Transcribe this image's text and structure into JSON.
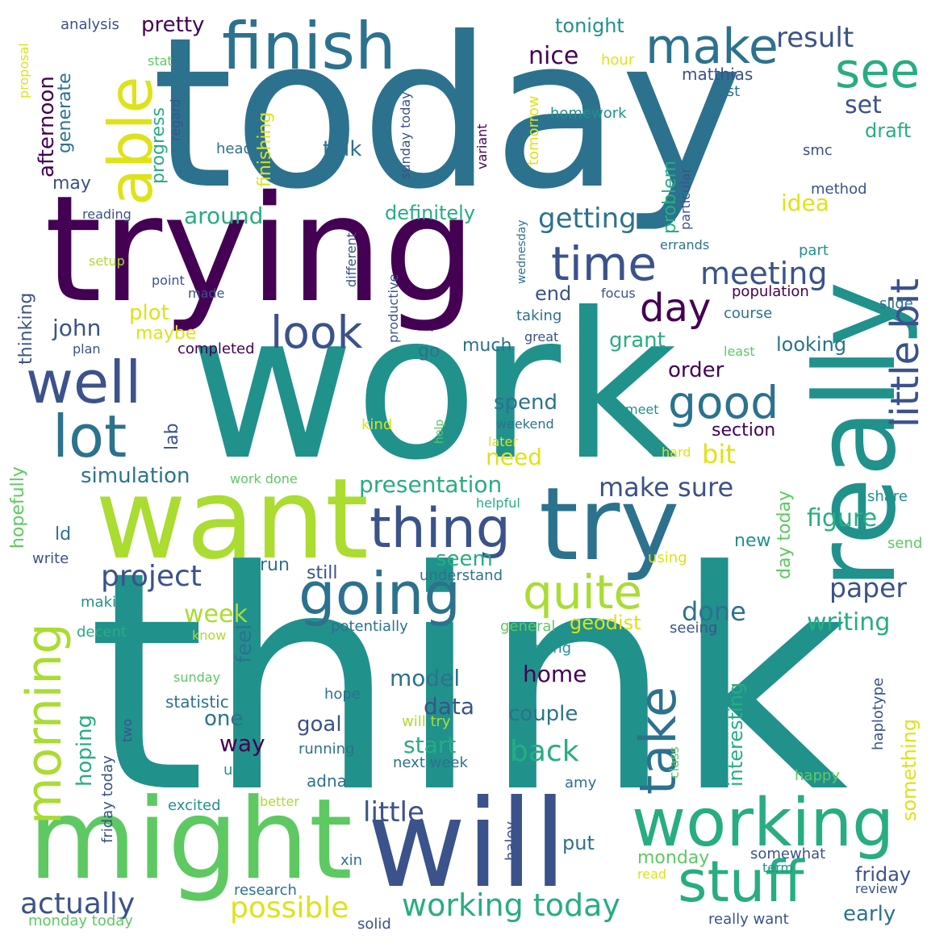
{
  "palette": {
    "dark_purple": "#440154",
    "indigo": "#3b528b",
    "blue": "#2c728e",
    "teal": "#21918c",
    "green": "#27ad81",
    "lime": "#5ec962",
    "yellow_green": "#aadc32",
    "yellow": "#dde318"
  },
  "words": [
    {
      "text": "today",
      "color": "#2c728e"
    },
    {
      "text": "work",
      "color": "#21918c"
    },
    {
      "text": "think",
      "color": "#21918c"
    },
    {
      "text": "trying",
      "color": "#440154"
    },
    {
      "text": "want",
      "color": "#aadc32"
    },
    {
      "text": "might",
      "color": "#5ec962"
    },
    {
      "text": "will",
      "color": "#3b528b"
    },
    {
      "text": "really",
      "color": "#21918c"
    },
    {
      "text": "try",
      "color": "#2c728e"
    },
    {
      "text": "finish",
      "color": "#2c728e"
    },
    {
      "text": "able",
      "color": "#dde318"
    },
    {
      "text": "working",
      "color": "#27ad81"
    },
    {
      "text": "going",
      "color": "#2c728e"
    },
    {
      "text": "thing",
      "color": "#3b528b"
    },
    {
      "text": "well",
      "color": "#3b528b"
    },
    {
      "text": "lot",
      "color": "#2c728e"
    },
    {
      "text": "stuff",
      "color": "#27ad81"
    },
    {
      "text": "take",
      "color": "#2c728e"
    },
    {
      "text": "quite",
      "color": "#aadc32"
    },
    {
      "text": "morning",
      "color": "#aadc32"
    },
    {
      "text": "make",
      "color": "#2c728e"
    },
    {
      "text": "see",
      "color": "#27ad81"
    },
    {
      "text": "time",
      "color": "#3b528b"
    },
    {
      "text": "look",
      "color": "#3b528b"
    },
    {
      "text": "good",
      "color": "#2c728e"
    },
    {
      "text": "day",
      "color": "#440154"
    },
    {
      "text": "little bit",
      "color": "#3b528b"
    },
    {
      "text": "working today",
      "color": "#27ad81"
    },
    {
      "text": "possible",
      "color": "#dde318"
    },
    {
      "text": "actually",
      "color": "#3b528b"
    },
    {
      "text": "project",
      "color": "#3b528b"
    },
    {
      "text": "meeting",
      "color": "#3b528b"
    },
    {
      "text": "getting",
      "color": "#2c728e"
    },
    {
      "text": "result",
      "color": "#3b528b"
    },
    {
      "text": "nice",
      "color": "#440154"
    },
    {
      "text": "set",
      "color": "#3b528b"
    },
    {
      "text": "draft",
      "color": "#27ad81"
    },
    {
      "text": "paper",
      "color": "#3b528b"
    },
    {
      "text": "writing",
      "color": "#27ad81"
    },
    {
      "text": "figure",
      "color": "#27ad81"
    },
    {
      "text": "make sure",
      "color": "#3b528b"
    },
    {
      "text": "presentation",
      "color": "#27ad81"
    },
    {
      "text": "little",
      "color": "#3b528b"
    },
    {
      "text": "back",
      "color": "#27ad81"
    },
    {
      "text": "start",
      "color": "#27ad81"
    },
    {
      "text": "data",
      "color": "#3b528b"
    },
    {
      "text": "model",
      "color": "#2c728e"
    },
    {
      "text": "home",
      "color": "#440154"
    },
    {
      "text": "couple",
      "color": "#2c728e"
    },
    {
      "text": "done",
      "color": "#2c728e"
    },
    {
      "text": "geodist",
      "color": "#dde318"
    },
    {
      "text": "week",
      "color": "#aadc32"
    },
    {
      "text": "seem",
      "color": "#27ad81"
    },
    {
      "text": "need",
      "color": "#dde318"
    },
    {
      "text": "bit",
      "color": "#dde318"
    },
    {
      "text": "spend",
      "color": "#2c728e"
    },
    {
      "text": "order",
      "color": "#440154"
    },
    {
      "text": "grant",
      "color": "#27ad81"
    },
    {
      "text": "looking",
      "color": "#2c728e"
    },
    {
      "text": "section",
      "color": "#440154"
    },
    {
      "text": "much",
      "color": "#2c728e"
    },
    {
      "text": "go",
      "color": "#2c728e"
    },
    {
      "text": "end",
      "color": "#3b528b"
    },
    {
      "text": "idea",
      "color": "#dde318"
    },
    {
      "text": "john",
      "color": "#3b528b"
    },
    {
      "text": "plot",
      "color": "#dde318"
    },
    {
      "text": "maybe",
      "color": "#dde318"
    },
    {
      "text": "around",
      "color": "#27ad81"
    },
    {
      "text": "definitely",
      "color": "#27ad81"
    },
    {
      "text": "talk",
      "color": "#2c728e"
    },
    {
      "text": "may",
      "color": "#3b528b"
    },
    {
      "text": "pretty",
      "color": "#440154"
    },
    {
      "text": "tonight",
      "color": "#21918c"
    },
    {
      "text": "matthias",
      "color": "#3b528b"
    },
    {
      "text": "first",
      "color": "#2c728e"
    },
    {
      "text": "homework",
      "color": "#21918c"
    },
    {
      "text": "hour",
      "color": "#dde318"
    },
    {
      "text": "stat",
      "color": "#5ec962"
    },
    {
      "text": "analysis",
      "color": "#3b528b"
    },
    {
      "text": "head",
      "color": "#2c728e"
    },
    {
      "text": "smc",
      "color": "#3b528b"
    },
    {
      "text": "method",
      "color": "#3b528b"
    },
    {
      "text": "reading",
      "color": "#3b528b"
    },
    {
      "text": "setup",
      "color": "#aadc32"
    },
    {
      "text": "point",
      "color": "#3b528b"
    },
    {
      "text": "made",
      "color": "#3b528b"
    },
    {
      "text": "focus",
      "color": "#3b528b"
    },
    {
      "text": "population",
      "color": "#440154"
    },
    {
      "text": "taking",
      "color": "#2c728e"
    },
    {
      "text": "course",
      "color": "#2c728e"
    },
    {
      "text": "slide",
      "color": "#2c728e"
    },
    {
      "text": "errands",
      "color": "#2c728e"
    },
    {
      "text": "part",
      "color": "#21918c"
    },
    {
      "text": "keep",
      "color": "#440154"
    },
    {
      "text": "great",
      "color": "#3b528b"
    },
    {
      "text": "plan",
      "color": "#3b528b"
    },
    {
      "text": "completed",
      "color": "#440154"
    },
    {
      "text": "least",
      "color": "#5ec962"
    },
    {
      "text": "kind",
      "color": "#dde318"
    },
    {
      "text": "weekend",
      "color": "#2c728e"
    },
    {
      "text": "meet",
      "color": "#21918c"
    },
    {
      "text": "later",
      "color": "#dde318"
    },
    {
      "text": "hard",
      "color": "#dde318"
    },
    {
      "text": "help",
      "color": "#5ec962"
    },
    {
      "text": "simulation",
      "color": "#2c728e"
    },
    {
      "text": "work done",
      "color": "#5ec962"
    },
    {
      "text": "helpful",
      "color": "#27ad81"
    },
    {
      "text": "share",
      "color": "#21918c"
    },
    {
      "text": "send",
      "color": "#5ec962"
    },
    {
      "text": "new",
      "color": "#21918c"
    },
    {
      "text": "using",
      "color": "#dde318"
    },
    {
      "text": "ld",
      "color": "#2c728e"
    },
    {
      "text": "write",
      "color": "#3b528b"
    },
    {
      "text": "run",
      "color": "#2c728e"
    },
    {
      "text": "still",
      "color": "#3b528b"
    },
    {
      "text": "understand",
      "color": "#2c728e"
    },
    {
      "text": "making",
      "color": "#21918c"
    },
    {
      "text": "decent",
      "color": "#27ad81"
    },
    {
      "text": "potentially",
      "color": "#2c728e"
    },
    {
      "text": "general",
      "color": "#5ec962"
    },
    {
      "text": "seeing",
      "color": "#3b528b"
    },
    {
      "text": "know",
      "color": "#aadc32"
    },
    {
      "text": "planning",
      "color": "#21918c"
    },
    {
      "text": "sunday",
      "color": "#5ec962"
    },
    {
      "text": "statistic",
      "color": "#2c728e"
    },
    {
      "text": "hope",
      "color": "#2c728e"
    },
    {
      "text": "one",
      "color": "#2c728e"
    },
    {
      "text": "way",
      "color": "#440154"
    },
    {
      "text": "goal",
      "color": "#3b528b"
    },
    {
      "text": "will try",
      "color": "#aadc32"
    },
    {
      "text": "running",
      "color": "#2c728e"
    },
    {
      "text": "next week",
      "color": "#2c728e"
    },
    {
      "text": "use",
      "color": "#21918c"
    },
    {
      "text": "adna",
      "color": "#2c728e"
    },
    {
      "text": "amy",
      "color": "#2c728e"
    },
    {
      "text": "happy",
      "color": "#5ec962"
    },
    {
      "text": "excited",
      "color": "#21918c"
    },
    {
      "text": "better",
      "color": "#aadc32"
    },
    {
      "text": "put",
      "color": "#2c728e"
    },
    {
      "text": "monday",
      "color": "#5ec962"
    },
    {
      "text": "somewhat",
      "color": "#3b528b"
    },
    {
      "text": "friday",
      "color": "#3b528b"
    },
    {
      "text": "term",
      "color": "#21918c"
    },
    {
      "text": "read",
      "color": "#dde318"
    },
    {
      "text": "review",
      "color": "#3b528b"
    },
    {
      "text": "early",
      "color": "#2c728e"
    },
    {
      "text": "really want",
      "color": "#3b528b"
    },
    {
      "text": "xin",
      "color": "#2c728e"
    },
    {
      "text": "research",
      "color": "#2c728e"
    },
    {
      "text": "solid",
      "color": "#3b528b"
    },
    {
      "text": "monday today",
      "color": "#5ec962"
    },
    {
      "text": "afternoon",
      "color": "#440154"
    },
    {
      "text": "generate",
      "color": "#2c728e"
    },
    {
      "text": "progress",
      "color": "#27ad81"
    },
    {
      "text": "finishing",
      "color": "#dde318"
    },
    {
      "text": "regard",
      "color": "#3b528b"
    },
    {
      "text": "sunday today",
      "color": "#3b528b"
    },
    {
      "text": "variant",
      "color": "#440154"
    },
    {
      "text": "tomorrow",
      "color": "#dde318"
    },
    {
      "text": "problem",
      "color": "#27ad81"
    },
    {
      "text": "particular",
      "color": "#3b528b"
    },
    {
      "text": "wednesday",
      "color": "#2c728e"
    },
    {
      "text": "productive",
      "color": "#3b528b"
    },
    {
      "text": "different",
      "color": "#3b528b"
    },
    {
      "text": "thinking",
      "color": "#3b528b"
    },
    {
      "text": "hopefully",
      "color": "#5ec962"
    },
    {
      "text": "lab",
      "color": "#3b528b"
    },
    {
      "text": "hoping",
      "color": "#27ad81"
    },
    {
      "text": "feel",
      "color": "#2c728e"
    },
    {
      "text": "friday today",
      "color": "#3b528b"
    },
    {
      "text": "two",
      "color": "#3b528b"
    },
    {
      "text": "haley",
      "color": "#3b528b"
    },
    {
      "text": "interesting",
      "color": "#27ad81"
    },
    {
      "text": "something",
      "color": "#dde318"
    },
    {
      "text": "day today",
      "color": "#5ec962"
    },
    {
      "text": "haplotype",
      "color": "#3b528b"
    },
    {
      "text": "class",
      "color": "#5ec962"
    },
    {
      "text": "proposal",
      "color": "#dde318"
    }
  ]
}
